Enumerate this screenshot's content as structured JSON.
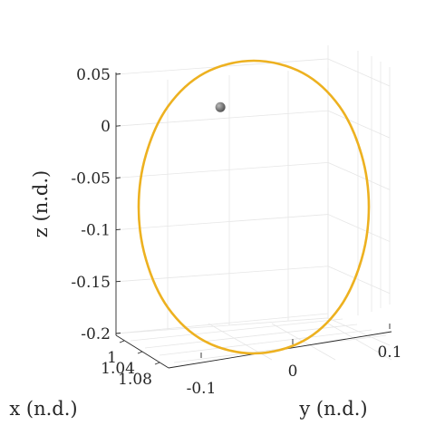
{
  "chart_data": {
    "type": "line",
    "title": "",
    "xlabel": "x (n.d.)",
    "ylabel": "y (n.d.)",
    "zlabel": "z (n.d.)",
    "grid": true,
    "z_ticks": [
      "0.05",
      "0",
      "-0.05",
      "-0.1",
      "-0.15",
      "-0.2"
    ],
    "z_tick_values": [
      0.05,
      0,
      -0.05,
      -0.1,
      -0.15,
      -0.2
    ],
    "zlim": [
      -0.2,
      0.05
    ],
    "y_ticks": [
      "-0.1",
      "0",
      "0.1"
    ],
    "y_tick_values": [
      -0.1,
      0,
      0.1
    ],
    "x_ticks": [
      "1",
      "1.04",
      "1.08"
    ],
    "x_tick_values": [
      1,
      1.04,
      1.08
    ],
    "series": [
      {
        "kind": "orbit",
        "color": "#edb120",
        "y": [
          -0.005,
          0.042,
          0.077,
          0.098,
          0.105,
          0.098,
          0.077,
          0.042,
          -0.005,
          -0.052,
          -0.087,
          -0.108,
          -0.115,
          -0.108,
          -0.087,
          -0.052,
          -0.005
        ],
        "z": [
          0.056,
          0.045,
          0.015,
          -0.028,
          -0.075,
          -0.122,
          -0.165,
          -0.195,
          -0.206,
          -0.195,
          -0.165,
          -0.122,
          -0.075,
          -0.028,
          0.015,
          0.045,
          0.056
        ]
      },
      {
        "kind": "body",
        "color": "#555555",
        "y": [
          -0.017
        ],
        "z": [
          0.012
        ]
      }
    ]
  }
}
